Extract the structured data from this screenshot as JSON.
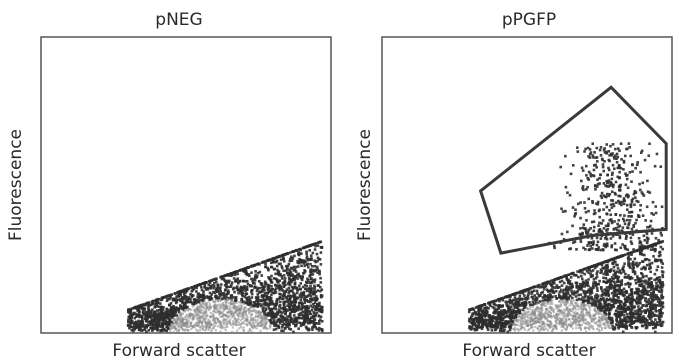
{
  "chart_data": [
    {
      "type": "scatter",
      "title": "pNEG",
      "xlabel": "Forward scatter",
      "ylabel": "Fluorescence",
      "ticks": "none",
      "cluster": {
        "description": "dense population in lower-middle region",
        "x_range": [
          0.3,
          0.97
        ],
        "y_range": [
          0.0,
          0.31
        ],
        "approx_points": 2600
      },
      "gate": null
    },
    {
      "type": "scatter",
      "title": "pPGFP",
      "xlabel": "Forward scatter",
      "ylabel": "Fluorescence",
      "ticks": "none",
      "cluster": {
        "description": "dense population in lower-middle region with sparse upward tail",
        "x_range": [
          0.3,
          0.97
        ],
        "y_range": [
          0.0,
          0.31
        ],
        "approx_points": 2600
      },
      "tail": {
        "x_range": [
          0.55,
          0.97
        ],
        "y_range": [
          0.28,
          0.64
        ],
        "approx_points": 500
      },
      "gate": {
        "shape": "polygon",
        "color": "#3a3a3a",
        "vertices": [
          [
            0.34,
            0.48
          ],
          [
            0.79,
            0.83
          ],
          [
            0.98,
            0.64
          ],
          [
            0.98,
            0.35
          ],
          [
            0.73,
            0.33
          ],
          [
            0.41,
            0.27
          ]
        ]
      }
    }
  ],
  "colors": {
    "frame": "#555555",
    "dense": "#8a8a8a",
    "sparse": "#2e2e2e"
  }
}
